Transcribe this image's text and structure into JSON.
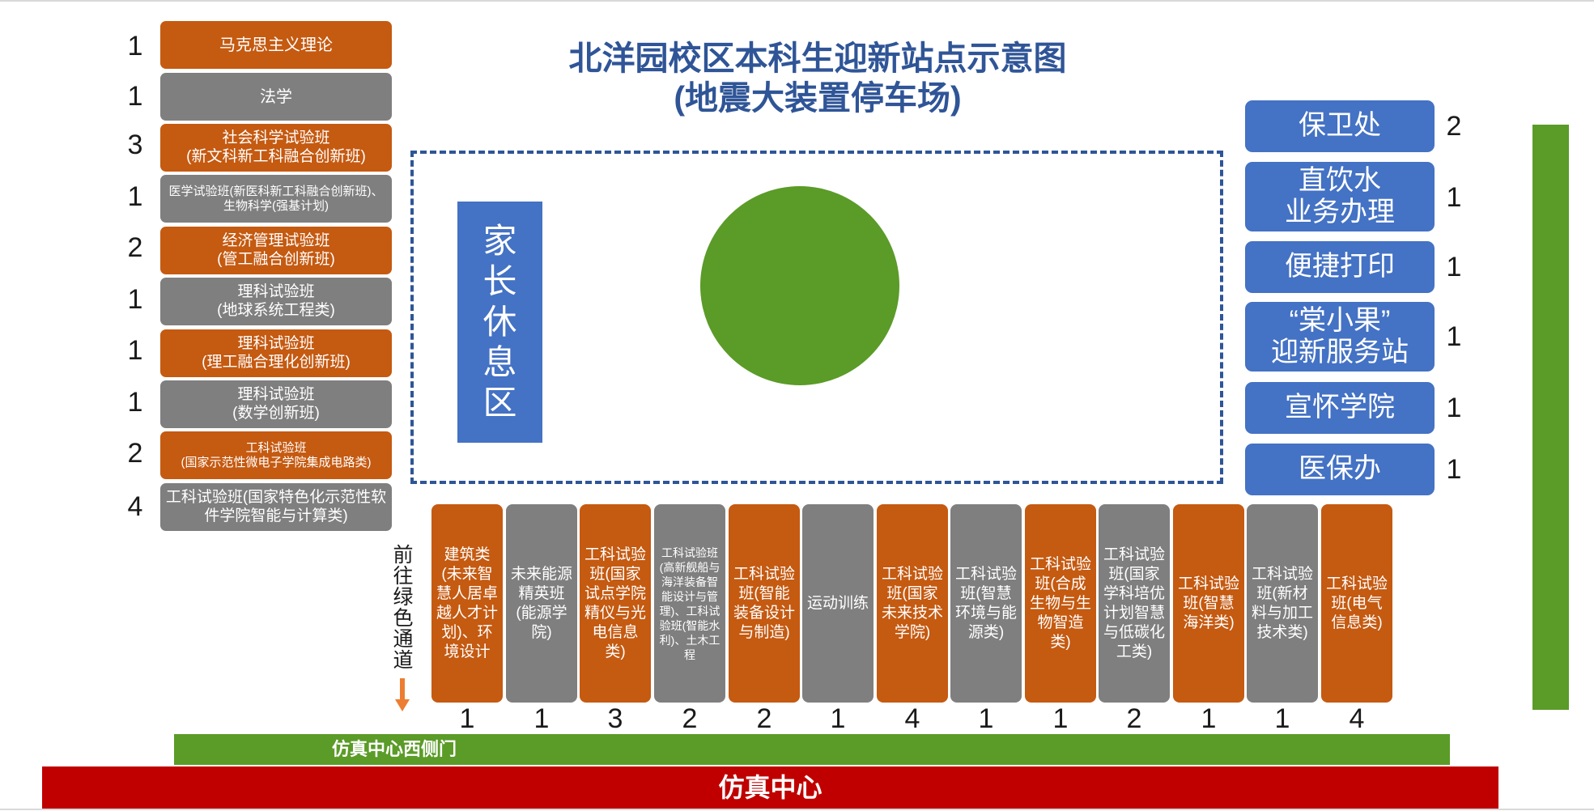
{
  "title": {
    "line1": "北洋园校区本科生迎新站点示意图",
    "line2": "(地震大装置停车场)"
  },
  "left_stations": [
    {
      "label": "马克思主义理论",
      "count": "1",
      "color": "orange"
    },
    {
      "label": "法学",
      "count": "1",
      "color": "gray"
    },
    {
      "label": "社会科学试验班\n(新文科新工科融合创新班)",
      "count": "3",
      "color": "orange"
    },
    {
      "label": "医学试验班(新医科新工科融合创新班)、生物科学(强基计划)",
      "count": "1",
      "color": "gray"
    },
    {
      "label": "经济管理试验班\n(管工融合创新班)",
      "count": "2",
      "color": "orange"
    },
    {
      "label": "理科试验班\n(地球系统工程类)",
      "count": "1",
      "color": "gray"
    },
    {
      "label": "理科试验班\n(理工融合理化创新班)",
      "count": "1",
      "color": "orange"
    },
    {
      "label": "理科试验班\n(数学创新班)",
      "count": "1",
      "color": "gray"
    },
    {
      "label": "工科试验班\n(国家示范性微电子学院集成电路类)",
      "count": "2",
      "color": "orange"
    },
    {
      "label": "工科试验班(国家特色化示范性软件学院智能与计算类)",
      "count": "4",
      "color": "gray"
    }
  ],
  "parent_rest_area": "家长休息区",
  "right_stations": [
    {
      "label": "保卫处",
      "count": "2"
    },
    {
      "label": "直饮水\n业务办理",
      "count": "1"
    },
    {
      "label": "便捷打印",
      "count": "1"
    },
    {
      "label": "“棠小果”\n迎新服务站",
      "count": "1"
    },
    {
      "label": "宣怀学院",
      "count": "1"
    },
    {
      "label": "医保办",
      "count": "1"
    }
  ],
  "green_path_label": "前往绿色通道",
  "bottom_stations": [
    {
      "label": "建筑类(未来智慧人居卓越人才计划)、环境设计",
      "count": "1",
      "color": "orange"
    },
    {
      "label": "未来能源精英班(能源学院)",
      "count": "1",
      "color": "gray"
    },
    {
      "label": "工科试验班(国家试点学院精仪与光电信息类)",
      "count": "3",
      "color": "orange"
    },
    {
      "label": "工科试验班(高新舰船与海洋装备智能设计与管理)、工科试验班(智能水利)、土木工程",
      "count": "2",
      "color": "gray"
    },
    {
      "label": "工科试验班(智能装备设计与制造)",
      "count": "2",
      "color": "orange"
    },
    {
      "label": "运动训练",
      "count": "1",
      "color": "gray"
    },
    {
      "label": "工科试验班(国家未来技术学院)",
      "count": "4",
      "color": "orange"
    },
    {
      "label": "工科试验班(智慧环境与能源类)",
      "count": "1",
      "color": "gray"
    },
    {
      "label": "工科试验班(合成生物与生物智造类)",
      "count": "1",
      "color": "orange"
    },
    {
      "label": "工科试验班(国家学科培优计划智慧与低碳化工类)",
      "count": "2",
      "color": "gray"
    },
    {
      "label": "工科试验班(智慧海洋类)",
      "count": "1",
      "color": "orange"
    },
    {
      "label": "工科试验班(新材料与加工技术类)",
      "count": "1",
      "color": "gray"
    },
    {
      "label": "工科试验班(电气信息类)",
      "count": "4",
      "color": "orange"
    }
  ],
  "west_gate_label": "仿真中心西侧门",
  "center_label": "仿真中心",
  "colors": {
    "orange": "#c55a11",
    "gray": "#7f7f7f",
    "blue": "#4472c4",
    "green": "#5b9b28",
    "red": "#c00000",
    "title": "#2f5597"
  }
}
